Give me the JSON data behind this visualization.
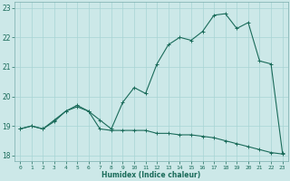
{
  "xlabel": "Humidex (Indice chaleur)",
  "xlim": [
    -0.5,
    23.5
  ],
  "ylim": [
    17.8,
    23.2
  ],
  "yticks": [
    18,
    19,
    20,
    21,
    22,
    23
  ],
  "xticks": [
    0,
    1,
    2,
    3,
    4,
    5,
    6,
    7,
    8,
    9,
    10,
    11,
    12,
    13,
    14,
    15,
    16,
    17,
    18,
    19,
    20,
    21,
    22,
    23
  ],
  "bg_color": "#cce8e8",
  "line_color": "#1a6b5a",
  "series1_x": [
    0,
    1,
    2,
    3,
    4,
    5,
    6,
    7,
    8,
    9,
    10,
    11,
    12,
    13,
    14,
    15,
    16,
    17,
    18,
    19,
    20,
    21,
    22,
    23
  ],
  "series1_y": [
    18.9,
    19.0,
    18.9,
    19.2,
    19.5,
    19.7,
    19.5,
    19.2,
    18.9,
    19.8,
    20.3,
    20.1,
    21.1,
    21.75,
    22.0,
    21.9,
    22.2,
    22.75,
    22.8,
    22.3,
    22.5,
    21.2,
    21.1,
    18.1
  ],
  "series2_x": [
    0,
    1,
    2,
    3,
    4,
    5,
    6,
    7,
    8,
    9,
    10,
    11,
    12,
    13,
    14,
    15,
    16,
    17,
    18,
    19,
    20,
    21,
    22,
    23
  ],
  "series2_y": [
    18.9,
    19.0,
    18.9,
    19.15,
    19.5,
    19.65,
    19.5,
    18.9,
    18.85,
    18.85,
    18.85,
    18.85,
    18.75,
    18.75,
    18.7,
    18.7,
    18.65,
    18.6,
    18.5,
    18.4,
    18.3,
    18.2,
    18.1,
    18.05
  ]
}
